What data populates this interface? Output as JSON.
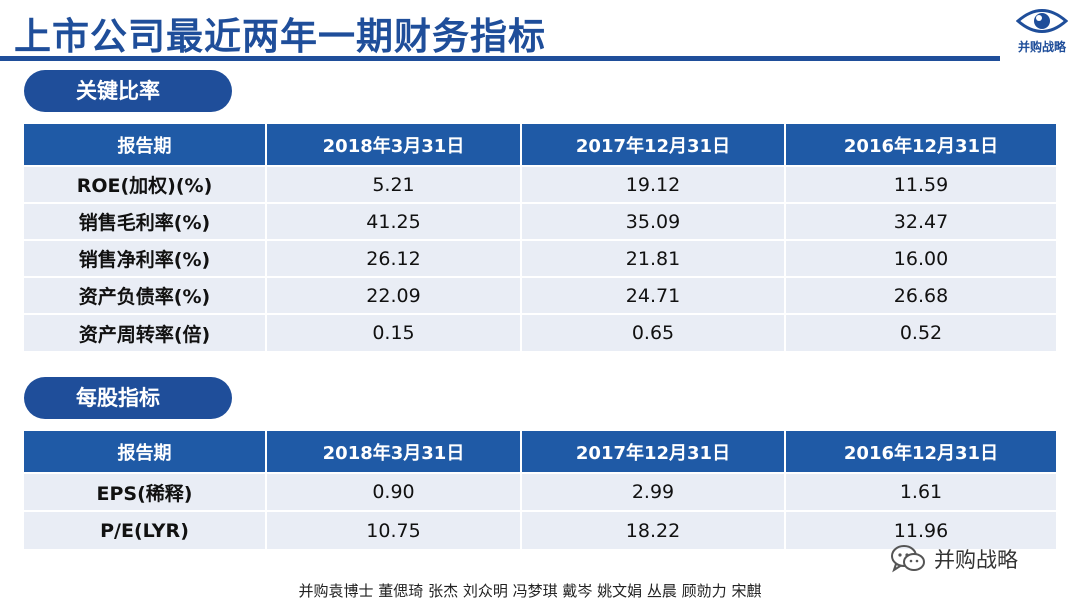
{
  "title": "上市公司最近两年一期财务指标",
  "logo_text": "并购战略",
  "section1": {
    "label": "关键比率",
    "headers": [
      "报告期",
      "2018年3月31日",
      "2017年12月31日",
      "2016年12月31日"
    ],
    "rows": [
      {
        "label": "ROE(加权)(%)",
        "values": [
          "5.21",
          "19.12",
          "11.59"
        ]
      },
      {
        "label": "销售毛利率(%)",
        "values": [
          "41.25",
          "35.09",
          "32.47"
        ]
      },
      {
        "label": "销售净利率(%)",
        "values": [
          "26.12",
          "21.81",
          "16.00"
        ]
      },
      {
        "label": "资产负债率(%)",
        "values": [
          "22.09",
          "24.71",
          "26.68"
        ]
      },
      {
        "label": "资产周转率(倍)",
        "values": [
          "0.15",
          "0.65",
          "0.52"
        ]
      }
    ]
  },
  "section2": {
    "label": "每股指标",
    "headers": [
      "报告期",
      "2018年3月31日",
      "2017年12月31日",
      "2016年12月31日"
    ],
    "rows": [
      {
        "label": "EPS(稀释)",
        "values": [
          "0.90",
          "2.99",
          "1.61"
        ]
      },
      {
        "label": "P/E(LYR)",
        "values": [
          "10.75",
          "18.22",
          "11.96"
        ]
      }
    ]
  },
  "watermark": "并购战略",
  "authors": "并购袁博士 董偲琦 张杰 刘众明 冯梦琪 戴岑 姚文娟  丛晨 顾勍力 宋麒",
  "colors": {
    "primary": "#1f4e9a",
    "header_bg": "#1f5aa6",
    "row_bg": "#e9edf5"
  }
}
